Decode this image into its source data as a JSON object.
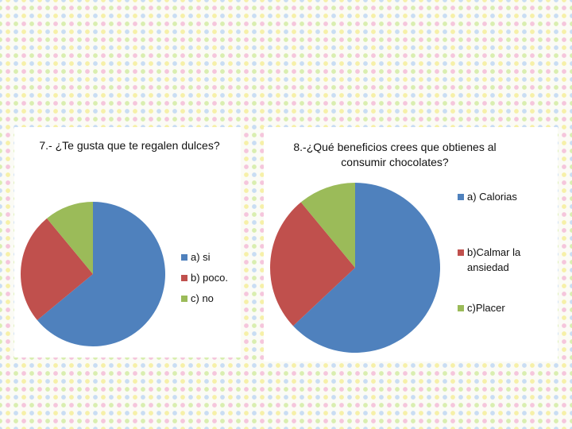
{
  "chart_data": [
    {
      "type": "pie",
      "title": "7.- ¿Te gusta que te regalen dulces?",
      "categories": [
        "a) si",
        "b) poco.",
        "c) no"
      ],
      "values": [
        64,
        25,
        11
      ],
      "colors": [
        "#4f81bd",
        "#c0504d",
        "#9bbb59"
      ],
      "legend": "right"
    },
    {
      "type": "pie",
      "title": "8.-¿Qué beneficios crees que obtienes al consumir chocolates?",
      "categories": [
        "a) Calorias",
        "b)Calmar la ansiedad",
        "c)Placer"
      ],
      "values": [
        63,
        26,
        11
      ],
      "colors": [
        "#4f81bd",
        "#c0504d",
        "#9bbb59"
      ],
      "legend": "right"
    }
  ]
}
